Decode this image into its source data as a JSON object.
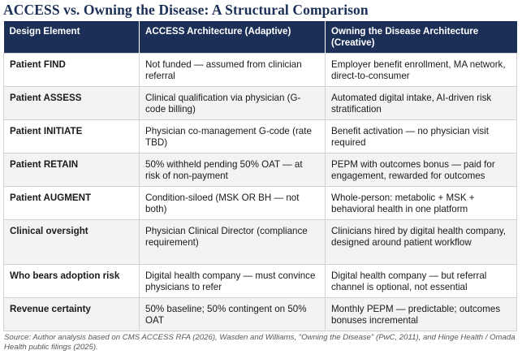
{
  "title": "ACCESS vs. Owning the Disease: A Structural Comparison",
  "table": {
    "headers": [
      "Design Element",
      "ACCESS Architecture (Adaptive)",
      "Owning the Disease Architecture (Creative)"
    ],
    "rows": [
      [
        "Patient FIND",
        "Not funded — assumed from clinician referral",
        "Employer benefit enrollment, MA network, direct-to-consumer"
      ],
      [
        "Patient ASSESS",
        "Clinical qualification via physician (G-code billing)",
        "Automated digital intake, AI-driven risk stratification"
      ],
      [
        "Patient INITIATE",
        "Physician co-management G-code (rate TBD)",
        "Benefit activation — no physician visit required"
      ],
      [
        "Patient RETAIN",
        "50% withheld pending 50% OAT — at risk of non-payment",
        "PEPM with outcomes bonus — paid for engagement, rewarded for outcomes"
      ],
      [
        "Patient AUGMENT",
        "Condition-siloed (MSK OR BH — not both)",
        "Whole-person: metabolic + MSK + behavioral health in one platform"
      ],
      [
        "Clinical oversight",
        "Physician Clinical Director (compliance requirement)",
        "Clinicians hired by digital health company, designed around patient workflow"
      ],
      [
        "Who bears adoption risk",
        "Digital health company — must convince physicians to refer",
        "Digital health company — but referral channel is optional, not essential"
      ],
      [
        "Revenue certainty",
        "50% baseline; 50% contingent on 50% OAT",
        "Monthly PEPM — predictable; outcomes bonuses incremental"
      ]
    ]
  },
  "source": "Source: Author analysis based on CMS ACCESS RFA (2026), Wasden and Williams, \"Owning the Disease\" (PwC, 2011), and Hinge Health / Omada Health public filings (2025)."
}
